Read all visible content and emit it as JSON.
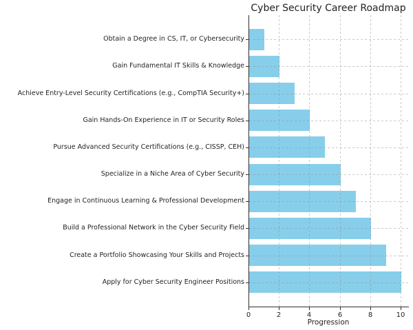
{
  "figure": {
    "background": "#ffffff"
  },
  "chart_data": {
    "type": "bar",
    "orientation": "horizontal",
    "title": "Cyber Security Career Roadmap",
    "xlabel": "Progression",
    "ylabel": "",
    "categories": [
      "Obtain a Degree in CS, IT, or Cybersecurity",
      "Gain Fundamental IT Skills & Knowledge",
      "Achieve Entry-Level Security Certifications (e.g., CompTIA Security+)",
      "Gain Hands-On Experience in IT or Security Roles",
      "Pursue Advanced Security Certifications (e.g., CISSP, CEH)",
      "Specialize in a Niche Area of Cyber Security",
      "Engage in Continuous Learning & Professional Development",
      "Build a Professional Network in the Cyber Security Field",
      "Create a Portfolio Showcasing Your Skills and Projects",
      "Apply for Cyber Security Engineer Positions"
    ],
    "values": [
      1,
      2,
      3,
      4,
      5,
      6,
      7,
      8,
      9,
      10
    ],
    "xlim": [
      0,
      10.5
    ],
    "xticks": [
      0,
      2,
      4,
      6,
      8,
      10
    ],
    "xtick_labels": [
      "0",
      "2",
      "4",
      "6",
      "8",
      "10"
    ],
    "grid": true,
    "grid_style": "dashed",
    "grid_over_bars": true,
    "legend_position": "none",
    "bar_color": "#87CEEB",
    "axis_color": "#2e2e2e",
    "text_color": "#1f1f1f"
  }
}
